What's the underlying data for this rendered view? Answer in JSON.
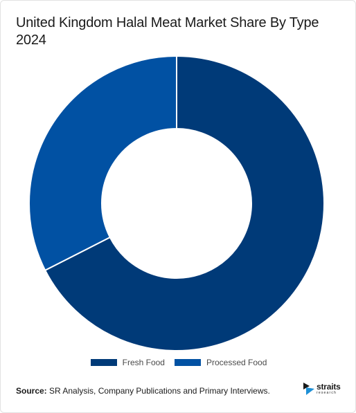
{
  "chart_data": {
    "type": "pie",
    "title": "United Kingdom Halal Meat Market Share By Type 2024",
    "categories": [
      "Fresh Food",
      "Processed Food"
    ],
    "values": [
      67.5,
      32.5
    ],
    "unit": "%",
    "colors": [
      "#003a78",
      "#0151a3"
    ],
    "legend_position": "bottom",
    "donut": true
  },
  "source": {
    "label": "Source:",
    "text": "SR Analysis, Company Publications and Primary Interviews."
  },
  "logo": {
    "name": "straits",
    "sub": "research",
    "icon": "straits-logo-icon"
  }
}
